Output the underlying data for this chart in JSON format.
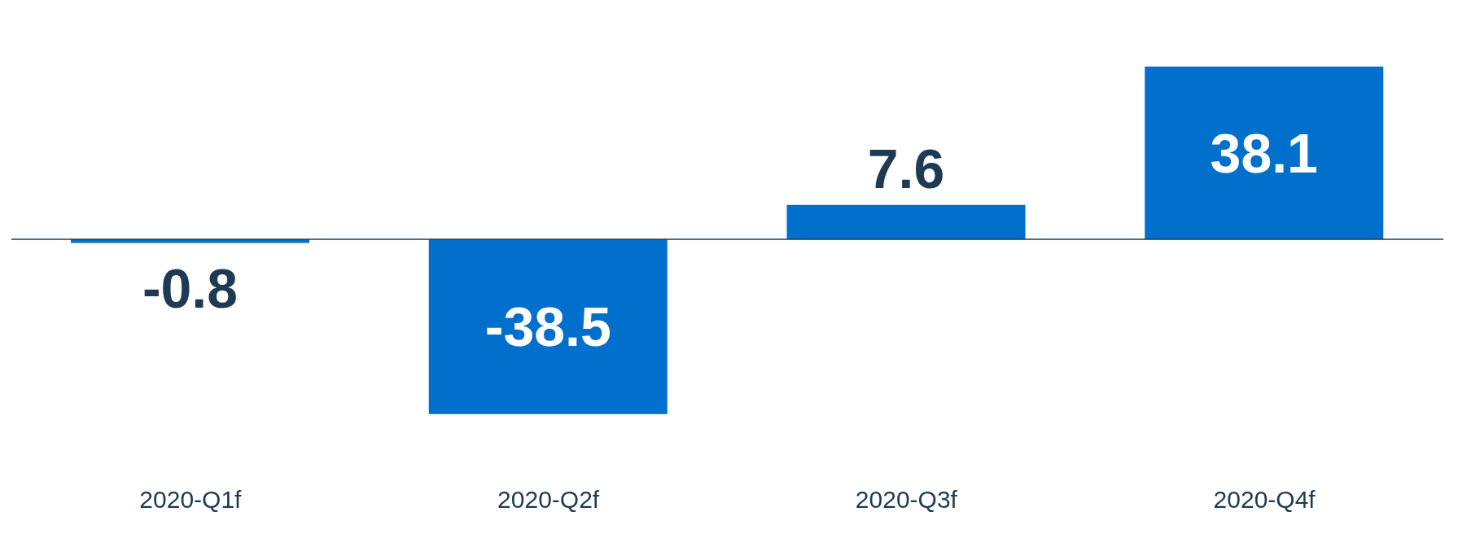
{
  "chart_data": {
    "type": "bar",
    "categories": [
      "2020-Q1f",
      "2020-Q2f",
      "2020-Q3f",
      "2020-Q4f"
    ],
    "values": [
      -0.8,
      -38.5,
      7.6,
      38.1
    ],
    "color": "#0070cc",
    "data_labels": true
  }
}
